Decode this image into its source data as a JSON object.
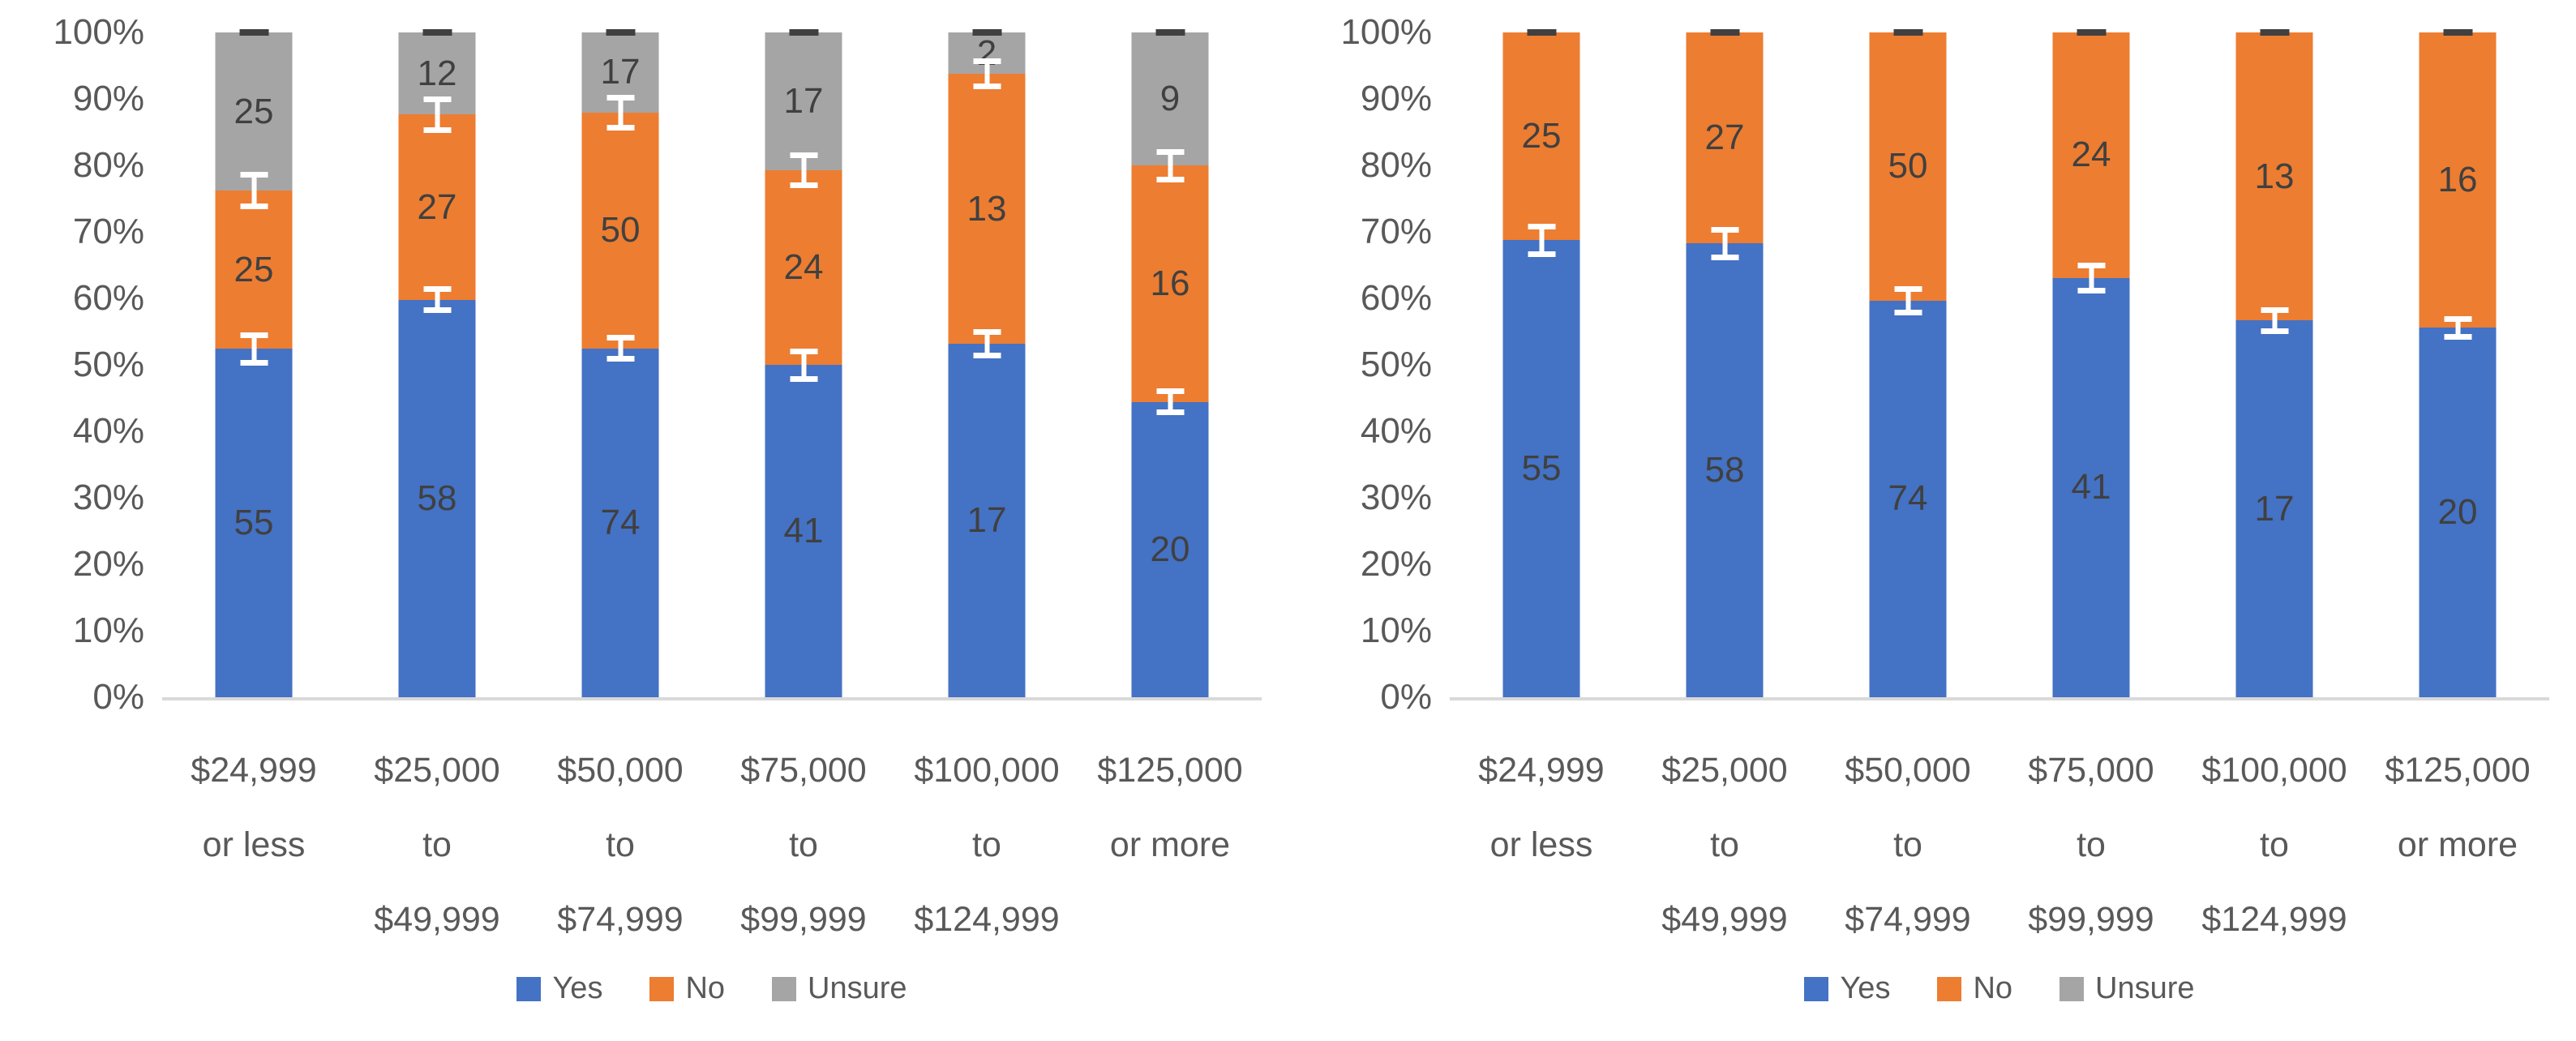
{
  "figure": {
    "background": "#ffffff",
    "colors": {
      "yes": "#4472C4",
      "no": "#ED7D31",
      "unsure": "#A5A5A5",
      "data_label": "#404040",
      "tick_label": "#595959",
      "axis_line": "#D9D9D9",
      "error_bar": "#FFFFFF",
      "top_tick": "#404040"
    }
  },
  "chart_data": [
    {
      "type": "bar",
      "subtype": "stacked-100pct-column",
      "title": "",
      "xlabel": "",
      "ylabel": "",
      "ylim": [
        "0%",
        "100%"
      ],
      "grid": false,
      "y_ticks": [
        "100%",
        "90%",
        "80%",
        "70%",
        "60%",
        "50%",
        "40%",
        "30%",
        "20%",
        "10%",
        "0%"
      ],
      "categories": [
        [
          "$24,999",
          "or less"
        ],
        [
          "$25,000",
          "to",
          "$49,999"
        ],
        [
          "$50,000",
          "to",
          "$74,999"
        ],
        [
          "$75,000",
          "to",
          "$99,999"
        ],
        [
          "$100,000",
          "to",
          "$124,999"
        ],
        [
          "$125,000",
          "or more"
        ]
      ],
      "series": [
        {
          "name": "Yes",
          "color": "#4472C4",
          "values": [
            55,
            58,
            74,
            41,
            17,
            20
          ]
        },
        {
          "name": "No",
          "color": "#ED7D31",
          "values": [
            25,
            27,
            50,
            24,
            13,
            16
          ]
        },
        {
          "name": "Unsure",
          "color": "#A5A5A5",
          "values": [
            25,
            12,
            17,
            17,
            2,
            9
          ]
        }
      ],
      "bars_normalized_to_100pct": true,
      "error_bars": {
        "style": "white I-beam at cumulative segment boundaries, dark tick at 100% top",
        "Yes_plus_minus_pp": [
          2.5,
          2.0,
          2.0,
          2.5,
          2.2,
          2.0
        ],
        "No_plus_minus_pp": [
          2.8,
          2.7,
          2.7,
          2.7,
          2.3,
          2.5
        ],
        "top_tick_at_100pct": true
      },
      "legend": {
        "position": "bottom-center",
        "items": [
          {
            "label": "Yes",
            "color": "#4472C4"
          },
          {
            "label": "No",
            "color": "#ED7D31"
          },
          {
            "label": "Unsure",
            "color": "#A5A5A5"
          }
        ]
      }
    },
    {
      "type": "bar",
      "subtype": "stacked-100pct-column",
      "title": "",
      "xlabel": "",
      "ylabel": "",
      "ylim": [
        "0%",
        "100%"
      ],
      "grid": false,
      "y_ticks": [
        "100%",
        "90%",
        "80%",
        "70%",
        "60%",
        "50%",
        "40%",
        "30%",
        "20%",
        "10%",
        "0%"
      ],
      "categories": [
        [
          "$24,999",
          "or less"
        ],
        [
          "$25,000",
          "to",
          "$49,999"
        ],
        [
          "$50,000",
          "to",
          "$74,999"
        ],
        [
          "$75,000",
          "to",
          "$99,999"
        ],
        [
          "$100,000",
          "to",
          "$124,999"
        ],
        [
          "$125,000",
          "or more"
        ]
      ],
      "series": [
        {
          "name": "Yes",
          "color": "#4472C4",
          "values": [
            55,
            58,
            74,
            41,
            17,
            20
          ]
        },
        {
          "name": "No",
          "color": "#ED7D31",
          "values": [
            25,
            27,
            50,
            24,
            13,
            16
          ]
        }
      ],
      "bars_normalized_to_100pct": true,
      "error_bars": {
        "style": "white I-beam at Yes/No boundary, dark tick at 100% top",
        "Yes_plus_minus_pp": [
          2.5,
          2.5,
          2.2,
          2.3,
          2.0,
          1.8
        ],
        "top_tick_at_100pct": true
      },
      "legend": {
        "position": "bottom-center",
        "items": [
          {
            "label": "Yes",
            "color": "#4472C4"
          },
          {
            "label": "No",
            "color": "#ED7D31"
          },
          {
            "label": "Unsure",
            "color": "#A5A5A5"
          }
        ]
      }
    }
  ]
}
